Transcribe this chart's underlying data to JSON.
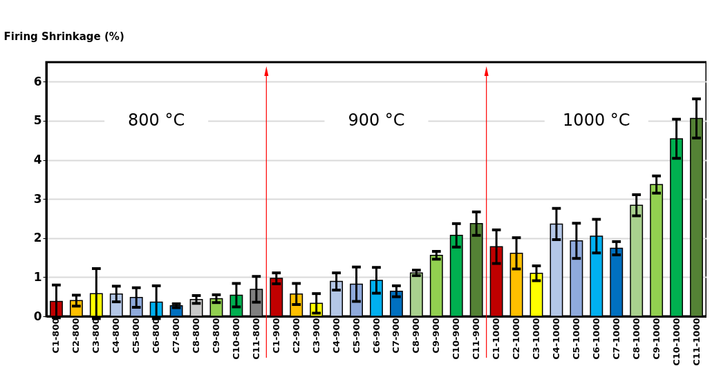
{
  "chart_data": {
    "type": "bar",
    "ylabel": "Firing Shrinkage (%)",
    "categories": [
      "C1-800",
      "C2-800",
      "C3-800",
      "C4-800",
      "C5-800",
      "C6-800",
      "C7-800",
      "C8-800",
      "C9-800",
      "C10-800",
      "C11-800",
      "C1-900",
      "C2-900",
      "C3-900",
      "C4-900",
      "C5-900",
      "C6-900",
      "C7-900",
      "C8-900",
      "C9-900",
      "C10-900",
      "C11-900",
      "C1-1000",
      "C2-1000",
      "C3-1000",
      "C4-1000",
      "C5-1000",
      "C6-1000",
      "C7-1000",
      "C8-1000",
      "C9-1000",
      "C10-1000",
      "C11-1000"
    ],
    "values": [
      0.38,
      0.4,
      0.58,
      0.57,
      0.48,
      0.36,
      0.27,
      0.43,
      0.45,
      0.54,
      0.69,
      0.97,
      0.57,
      0.33,
      0.89,
      0.82,
      0.92,
      0.64,
      1.11,
      1.56,
      2.07,
      2.37,
      1.78,
      1.61,
      1.1,
      2.36,
      1.93,
      2.05,
      1.74,
      2.84,
      3.37,
      4.54,
      5.06
    ],
    "errors": [
      0.42,
      0.14,
      0.64,
      0.2,
      0.25,
      0.42,
      0.05,
      0.1,
      0.1,
      0.3,
      0.33,
      0.14,
      0.27,
      0.25,
      0.22,
      0.44,
      0.33,
      0.14,
      0.07,
      0.1,
      0.3,
      0.3,
      0.43,
      0.4,
      0.19,
      0.4,
      0.45,
      0.43,
      0.17,
      0.27,
      0.22,
      0.5,
      0.5
    ],
    "colors": [
      "#c00000",
      "#ffc000",
      "#ffff00",
      "#b4c7e7",
      "#8faadc",
      "#00b0f0",
      "#0070c0",
      "#c9c9c9",
      "#92d050",
      "#00b050",
      "#808080",
      "#c00000",
      "#ffc000",
      "#ffff00",
      "#b4c7e7",
      "#8faadc",
      "#00b0f0",
      "#0070c0",
      "#a9d18e",
      "#92d050",
      "#00b050",
      "#548235",
      "#c00000",
      "#ffc000",
      "#ffff00",
      "#b4c7e7",
      "#8faadc",
      "#00b0f0",
      "#0070c0",
      "#a9d18e",
      "#92d050",
      "#00b050",
      "#548235"
    ],
    "ylim": [
      0,
      6.5
    ],
    "yticks": [
      0,
      1,
      2,
      3,
      4,
      5,
      6
    ],
    "grid": "y",
    "annotations": [
      "800 °C",
      "900 °C",
      "1000 °C"
    ]
  }
}
